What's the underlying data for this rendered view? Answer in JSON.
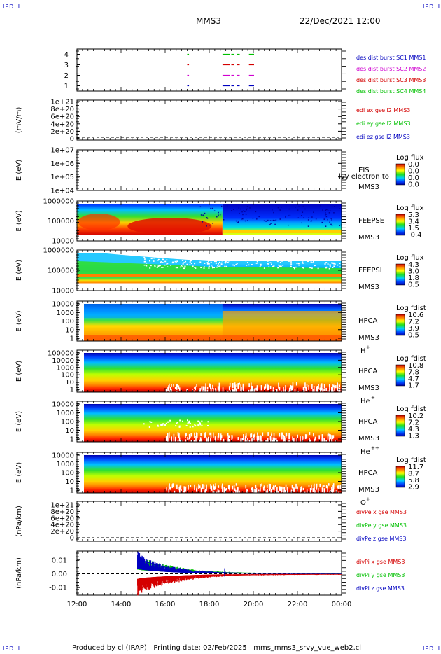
{
  "corner": {
    "tl": "IPDLI",
    "tr": "IPDLI",
    "bl": "IPDLI",
    "br": "IPDLI"
  },
  "header": {
    "spacecraft": "MMS3",
    "datetime": "22/Dec/2021 12:00"
  },
  "footer": {
    "text": "Produced by cl (IRAP)   Printing date: 02/Feb/2025   mms_mms3_srvy_vue_web2.cl"
  },
  "time_axis": [
    "12:00",
    "14:00",
    "16:00",
    "18:00",
    "20:00",
    "22:00",
    "00:00"
  ],
  "colors": {
    "red": "#d40000",
    "green": "#00c000",
    "blue": "#0000c0",
    "magenta": "#d000d0"
  },
  "chart_data": [
    {
      "type": "line",
      "id": "burst",
      "yticks": [
        "4",
        "3",
        "2",
        "1"
      ],
      "ylim": [
        0.5,
        4.5
      ],
      "legend": [
        {
          "text": "des dist burst SC1 MMS1",
          "color": "#0000c0"
        },
        {
          "text": "des dist burst SC2 MMS2",
          "color": "#d000d0"
        },
        {
          "text": "des dist burst SC3 MMS3",
          "color": "#d40000"
        },
        {
          "text": "des dist burst SC4 MMS4",
          "color": "#00c000"
        }
      ],
      "series": [
        {
          "level": 4,
          "color": "#00c000",
          "intervals": [
            [
              17.0,
              17.05
            ],
            [
              18.6,
              18.9
            ],
            [
              19.0,
              19.1
            ],
            [
              19.25,
              19.35
            ],
            [
              19.8,
              20.0
            ]
          ]
        },
        {
          "level": 3,
          "color": "#d40000",
          "intervals": [
            [
              17.0,
              17.05
            ],
            [
              18.6,
              18.9
            ],
            [
              19.0,
              19.1
            ],
            [
              19.25,
              19.35
            ],
            [
              19.8,
              20.0
            ]
          ]
        },
        {
          "level": 2,
          "color": "#d000d0",
          "intervals": [
            [
              17.0,
              17.05
            ],
            [
              18.6,
              18.9
            ],
            [
              19.0,
              19.1
            ],
            [
              19.25,
              19.35
            ],
            [
              19.8,
              20.0
            ]
          ]
        },
        {
          "level": 1,
          "color": "#0000c0",
          "intervals": [
            [
              17.0,
              17.05
            ],
            [
              18.6,
              18.9
            ],
            [
              19.0,
              19.1
            ],
            [
              19.25,
              19.35
            ],
            [
              19.8,
              20.0
            ]
          ]
        }
      ]
    },
    {
      "type": "line",
      "id": "edi",
      "ylabel": "(mV/m)",
      "yticks": [
        "1e+21",
        "8e+20",
        "6e+20",
        "4e+20",
        "2e+20",
        "0"
      ],
      "legend": [
        {
          "text": "edi ex gse l2 MMS3",
          "color": "#d40000"
        },
        {
          "text": "edi ey gse l2 MMS3",
          "color": "#00c000"
        },
        {
          "text": "edi ez gse l2 MMS3",
          "color": "#0000c0"
        }
      ]
    },
    {
      "type": "heatmap",
      "id": "eis",
      "ylabel": "E (eV)",
      "yticks": [
        "1e+07",
        "1e+06",
        "1e+05",
        "1e+04"
      ],
      "inst": "EIS",
      "inst2": "MMS3",
      "overlay": "lvy electron to",
      "cbar_title": "Log flux",
      "cbar": [
        "0.0",
        "0.0",
        "0.0",
        "0.0"
      ]
    },
    {
      "type": "heatmap",
      "id": "feepse",
      "ylabel": "E (eV)",
      "yticks": [
        "1000000",
        "100000",
        "10000"
      ],
      "inst": "FEEPSE",
      "inst2": "MMS3",
      "cbar_title": "Log flux",
      "cbar": [
        "5.3",
        "3.4",
        "1.5",
        "-0.4"
      ]
    },
    {
      "type": "heatmap",
      "id": "feepsi",
      "ylabel": "E (eV)",
      "yticks": [
        "1000000",
        "100000",
        "10000"
      ],
      "inst": "FEEPSI",
      "inst2": "MMS3",
      "cbar_title": "Log flux",
      "cbar": [
        "4.3",
        "3.0",
        "1.8",
        "0.5"
      ]
    },
    {
      "type": "heatmap",
      "id": "hpca_h",
      "ylabel": "E (eV)",
      "yticks": [
        "10000",
        "1000",
        "100",
        "10",
        "1"
      ],
      "inst": "HPCA",
      "inst2": "MMS3",
      "species": "H",
      "charge": "+",
      "cbar_title": "Log fdist",
      "cbar": [
        "10.6",
        "7.2",
        "3.9",
        "0.5"
      ]
    },
    {
      "type": "heatmap",
      "id": "hpca_he",
      "ylabel": "E (eV)",
      "yticks": [
        "100000",
        "10000",
        "1000",
        "100",
        "10",
        "1"
      ],
      "inst": "HPCA",
      "inst2": "MMS3",
      "species": "He",
      "charge": "+",
      "cbar_title": "Log fdist",
      "cbar": [
        "10.8",
        "7.8",
        "4.7",
        "1.7"
      ]
    },
    {
      "type": "heatmap",
      "id": "hpca_hepp",
      "ylabel": "E (eV)",
      "yticks": [
        "10000",
        "1000",
        "100",
        "10",
        "1"
      ],
      "inst": "HPCA",
      "inst2": "MMS3",
      "species": "He",
      "charge": "++",
      "cbar_title": "Log fdist",
      "cbar": [
        "10.2",
        "7.2",
        "4.3",
        "1.3"
      ]
    },
    {
      "type": "heatmap",
      "id": "hpca_o",
      "ylabel": "E (eV)",
      "yticks": [
        "10000",
        "1000",
        "100",
        "10",
        "1"
      ],
      "inst": "HPCA",
      "inst2": "MMS3",
      "species": "O",
      "charge": "+",
      "cbar_title": "Log fdist",
      "cbar": [
        "11.7",
        "8.7",
        "5.8",
        "2.9"
      ]
    },
    {
      "type": "line",
      "id": "divpe",
      "ylabel": "(nPa/km)",
      "yticks": [
        "1e+21",
        "8e+20",
        "6e+20",
        "4e+20",
        "2e+20",
        "0"
      ],
      "legend": [
        {
          "text": "divPe x gse MMS3",
          "color": "#d40000"
        },
        {
          "text": "divPe y gse MMS3",
          "color": "#00c000"
        },
        {
          "text": "divPe z gse MMS3",
          "color": "#0000c0"
        }
      ]
    },
    {
      "type": "line",
      "id": "divpi",
      "ylabel": "(nPa/km)",
      "yticks": [
        "0.01",
        "0.00",
        "-0.01"
      ],
      "ytick_values": [
        0.01,
        0.0,
        -0.01
      ],
      "ylim": [
        -0.0155,
        0.0165
      ],
      "xlim": [
        12,
        24
      ],
      "legend": [
        {
          "text": "divPi x gse MMS3",
          "color": "#d40000"
        },
        {
          "text": "divPi y gse MMS3",
          "color": "#00c000"
        },
        {
          "text": "divPi z gse MMS3",
          "color": "#0000c0"
        }
      ],
      "series": [
        {
          "name": "divPi x gse MMS3",
          "color": "#d40000",
          "x": [
            14.75,
            15.0,
            15.5,
            16.0,
            16.5,
            17.0,
            17.5,
            18.0,
            18.5,
            19.0,
            20.0,
            21.0,
            22.0,
            23.0,
            24.0
          ],
          "y": [
            -0.0125,
            -0.0098,
            -0.0078,
            -0.0062,
            -0.0048,
            -0.0036,
            -0.0027,
            -0.002,
            -0.0015,
            -0.0011,
            -0.0008,
            -0.0006,
            -0.0005,
            -0.0004,
            -0.0004
          ]
        },
        {
          "name": "divPi y gse MMS3",
          "color": "#00c000",
          "x": [
            14.75,
            15.0,
            15.5,
            16.0,
            16.5,
            17.0,
            17.5,
            18.0,
            18.5,
            19.0,
            20.0,
            21.0,
            22.0,
            23.0,
            24.0
          ],
          "y": [
            0.0105,
            0.0085,
            0.0065,
            0.005,
            0.0038,
            0.0028,
            0.002,
            0.0015,
            0.0011,
            0.0008,
            0.0005,
            0.0003,
            0.0002,
            0.0002,
            0.0001
          ]
        },
        {
          "name": "divPi z gse MMS3",
          "color": "#0000c0",
          "x": [
            14.75,
            15.0,
            15.5,
            16.0,
            16.5,
            17.0,
            17.5,
            18.0,
            18.5,
            19.0,
            20.0,
            21.0,
            22.0,
            23.0,
            24.0
          ],
          "y": [
            0.0125,
            0.0095,
            0.0068,
            0.0048,
            0.0034,
            0.0024,
            0.0017,
            0.0012,
            0.0008,
            0.0006,
            0.0004,
            0.0003,
            0.0002,
            0.0002,
            0.0002
          ]
        }
      ]
    }
  ]
}
